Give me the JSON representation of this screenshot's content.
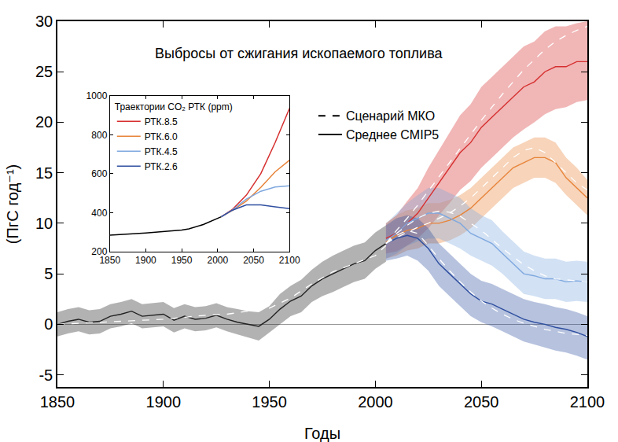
{
  "chart_data": [
    {
      "type": "line",
      "title": "Выбросы от сжигания ископаемого топлива",
      "x_label": "Годы",
      "y_label": "(ПгС год⁻¹)",
      "xlim": [
        1850,
        2100
      ],
      "xticks": [
        1850,
        1900,
        1950,
        2000,
        2050,
        2100
      ],
      "ylim": [
        -6.2,
        30
      ],
      "yticks": [
        -5,
        0,
        5,
        10,
        15,
        20,
        25,
        30
      ],
      "legend_items": [
        {
          "name": "Среднее CMIP5",
          "color": "#000000",
          "line_style": "solid"
        },
        {
          "name": "Сценарий МКО",
          "color": "#000000",
          "line_style": "dashed"
        }
      ],
      "series": [
        {
          "color": "#222222",
          "x": [
            1850,
            1855,
            1860,
            1865,
            1870,
            1875,
            1880,
            1885,
            1890,
            1895,
            1900,
            1905,
            1910,
            1915,
            1920,
            1925,
            1930,
            1935,
            1940,
            1945,
            1950,
            1955,
            1960,
            1965,
            1970,
            1975,
            1980,
            1985,
            1990,
            1995,
            2000,
            2005
          ],
          "values": [
            0,
            0.3,
            0.5,
            0.2,
            0.3,
            0.8,
            1.0,
            1.3,
            0.8,
            0.9,
            1.0,
            0.4,
            0.8,
            0.5,
            0.6,
            0.9,
            0.5,
            0.2,
            0.0,
            -0.2,
            0.5,
            1.5,
            2.3,
            2.8,
            3.8,
            4.5,
            5.0,
            5.5,
            6.0,
            6.3,
            7.3,
            8.0
          ],
          "lower": [
            -1.2,
            -0.9,
            -0.7,
            -1.0,
            -0.9,
            -0.4,
            -0.2,
            0.1,
            -0.4,
            -0.3,
            -0.2,
            -0.8,
            -0.4,
            -0.7,
            -0.6,
            -0.3,
            -0.7,
            -1.0,
            -1.3,
            -1.6,
            -0.8,
            0.0,
            0.8,
            1.2,
            2.2,
            2.8,
            3.2,
            3.7,
            4.2,
            4.5,
            5.5,
            6.2
          ],
          "upper": [
            1.2,
            1.5,
            1.7,
            1.4,
            1.5,
            2.0,
            2.2,
            2.5,
            2.0,
            2.1,
            2.2,
            1.6,
            2.0,
            1.7,
            1.8,
            2.1,
            1.7,
            1.5,
            1.3,
            1.2,
            1.8,
            3.0,
            3.8,
            4.4,
            5.4,
            6.2,
            6.8,
            7.3,
            7.8,
            8.1,
            9.1,
            9.8
          ],
          "iam": {
            "color": "#ffffff",
            "line_style": "dashed",
            "x": [
              1850,
              1860,
              1870,
              1880,
              1890,
              1900,
              1910,
              1920,
              1930,
              1940,
              1950,
              1960,
              1970,
              1980,
              1990,
              2000,
              2005
            ],
            "values": [
              0,
              0.1,
              0.2,
              0.3,
              0.4,
              0.5,
              0.7,
              0.9,
              1.0,
              1.3,
              1.6,
              2.6,
              4.0,
              5.2,
              6.0,
              6.8,
              7.8
            ]
          }
        },
        {
          "name": "РТК.8.5",
          "color": "#d62f2f",
          "x": [
            2005,
            2010,
            2015,
            2020,
            2025,
            2030,
            2035,
            2040,
            2045,
            2050,
            2055,
            2060,
            2065,
            2070,
            2075,
            2080,
            2085,
            2090,
            2095,
            2100
          ],
          "values": [
            8.5,
            9,
            10,
            11,
            12.5,
            14,
            15.5,
            17,
            18,
            19.5,
            20.5,
            21.5,
            22.5,
            23.5,
            24,
            25,
            25.5,
            25.5,
            26,
            26
          ],
          "lower": [
            7,
            7.2,
            7.8,
            8.5,
            9.5,
            10.8,
            12,
            13.3,
            14.2,
            15.5,
            16.5,
            17.5,
            18.5,
            19.3,
            20,
            20.8,
            21.3,
            21.5,
            22,
            22.2
          ],
          "upper": [
            10,
            10.8,
            12.2,
            13.5,
            15.5,
            17.2,
            19,
            20.7,
            21.8,
            23.5,
            24.5,
            25.5,
            26.5,
            27.5,
            28,
            29,
            29.5,
            29.5,
            29.8,
            30
          ],
          "iam": {
            "color": "#ffffff",
            "line_style": "dashed",
            "x": [
              2005,
              2010,
              2015,
              2020,
              2025,
              2030,
              2035,
              2040,
              2045,
              2050,
              2055,
              2060,
              2065,
              2070,
              2075,
              2080,
              2085,
              2090,
              2095,
              2100
            ],
            "values": [
              8,
              9.3,
              10.5,
              11.8,
              13.2,
              14.6,
              16,
              17.4,
              18.8,
              20.2,
              21.5,
              22.8,
              24,
              25.2,
              26.2,
              27.2,
              28,
              28.6,
              29.1,
              29.5
            ]
          }
        },
        {
          "name": "РТК.6.0",
          "color": "#e8843a",
          "x": [
            2005,
            2010,
            2015,
            2020,
            2025,
            2030,
            2035,
            2040,
            2045,
            2050,
            2055,
            2060,
            2065,
            2070,
            2075,
            2080,
            2085,
            2090,
            2095,
            2100
          ],
          "values": [
            8.2,
            8.8,
            9.3,
            9.5,
            10,
            10,
            10.3,
            10.8,
            11.5,
            12.5,
            13.5,
            14.5,
            15.5,
            16,
            16.5,
            16.5,
            16,
            14.5,
            13.5,
            12.5
          ],
          "lower": [
            6.5,
            6.8,
            7.3,
            7.5,
            8,
            8,
            8.3,
            8.8,
            9.5,
            10.5,
            11.5,
            12.5,
            13.5,
            14,
            14.5,
            14.5,
            14,
            12.8,
            11.8,
            10.8
          ],
          "upper": [
            10,
            10.8,
            11.3,
            11.5,
            12,
            12,
            12.3,
            12.8,
            13.5,
            14.5,
            15.5,
            16.5,
            17.5,
            18,
            18.5,
            18.5,
            18,
            16.5,
            15.5,
            14.3
          ],
          "iam": {
            "color": "#ffffff",
            "line_style": "dashed",
            "x": [
              2005,
              2010,
              2015,
              2020,
              2025,
              2030,
              2035,
              2040,
              2045,
              2050,
              2055,
              2060,
              2065,
              2070,
              2075,
              2080,
              2085,
              2090,
              2095,
              2100
            ],
            "values": [
              8,
              8.6,
              9.1,
              9.6,
              10,
              10.5,
              11,
              11.7,
              12.5,
              13.5,
              14.5,
              15.5,
              16.5,
              17.2,
              17.5,
              17,
              16,
              15,
              14,
              13.3
            ]
          }
        },
        {
          "name": "РТК.4.5",
          "color": "#7fa8df",
          "x": [
            2005,
            2010,
            2015,
            2020,
            2025,
            2030,
            2035,
            2040,
            2045,
            2050,
            2055,
            2060,
            2065,
            2070,
            2075,
            2080,
            2085,
            2090,
            2095,
            2100
          ],
          "values": [
            8.3,
            9,
            10,
            10.5,
            11,
            11,
            10.5,
            10,
            9,
            8.5,
            8,
            7,
            6,
            5,
            4.8,
            4.5,
            4.5,
            4.2,
            4.3,
            4.2
          ],
          "lower": [
            6.5,
            7,
            7.8,
            8.2,
            8.5,
            8.5,
            8,
            7.5,
            6.8,
            6.3,
            5.8,
            5,
            4,
            3,
            2.8,
            2.5,
            2.5,
            2.2,
            2.3,
            2.2
          ],
          "upper": [
            10,
            11,
            12,
            12.8,
            13.5,
            13.5,
            13,
            12.5,
            11.5,
            10.8,
            10.3,
            9.2,
            8.2,
            7.2,
            6.8,
            6.5,
            6.5,
            6.2,
            6.3,
            6.2
          ],
          "iam": {
            "color": "#ffffff",
            "line_style": "dashed",
            "x": [
              2005,
              2010,
              2015,
              2020,
              2025,
              2030,
              2035,
              2040,
              2045,
              2050,
              2055,
              2060,
              2065,
              2070,
              2075,
              2080,
              2085,
              2090,
              2095,
              2100
            ],
            "values": [
              8,
              9,
              9.8,
              10.5,
              11,
              11.2,
              11.1,
              10.7,
              10,
              9.3,
              8.4,
              7.5,
              6.7,
              5.9,
              5.3,
              4.8,
              4.5,
              4.4,
              4.3,
              4.2
            ]
          }
        },
        {
          "name": "РТК.2.6",
          "color": "#2f4fa0",
          "x": [
            2005,
            2010,
            2015,
            2020,
            2025,
            2030,
            2035,
            2040,
            2045,
            2050,
            2055,
            2060,
            2065,
            2070,
            2075,
            2080,
            2085,
            2090,
            2095,
            2100
          ],
          "values": [
            8,
            8.5,
            8.8,
            8.5,
            7.5,
            6,
            5,
            4,
            3,
            2.3,
            2,
            1.5,
            1,
            0.5,
            0.2,
            0,
            -0.3,
            -0.5,
            -0.8,
            -1.2
          ],
          "lower": [
            6.3,
            6.5,
            6.8,
            6.3,
            5.3,
            3.8,
            2.8,
            1.8,
            0.8,
            0.2,
            -0.2,
            -0.7,
            -1.2,
            -1.7,
            -2,
            -2.3,
            -2.6,
            -2.8,
            -3.1,
            -3.5
          ],
          "upper": [
            9.8,
            10.5,
            10.8,
            10.5,
            9.5,
            8,
            7,
            6,
            5,
            4.3,
            4,
            3.5,
            3,
            2.5,
            2.2,
            2,
            1.7,
            1.5,
            1.2,
            0.8
          ],
          "iam": {
            "color": "#ffffff",
            "line_style": "dashed",
            "x": [
              2005,
              2010,
              2015,
              2020,
              2025,
              2030,
              2035,
              2040,
              2045,
              2050,
              2055,
              2060,
              2065,
              2070,
              2075,
              2080,
              2085,
              2090,
              2095,
              2100
            ],
            "values": [
              8,
              8.8,
              9.3,
              9,
              7.8,
              6.5,
              5.3,
              4.2,
              3.2,
              2.3,
              1.6,
              1,
              0.5,
              0.1,
              -0.2,
              -0.5,
              -0.7,
              -0.9,
              -1,
              -1.1
            ]
          }
        }
      ]
    },
    {
      "type": "line",
      "legend_title": "Траектории CO₂ РТК (ppm)",
      "xlim": [
        1850,
        2100
      ],
      "xticks": [
        1850,
        1900,
        1950,
        2000,
        2050,
        2100
      ],
      "ylim": [
        200,
        1000
      ],
      "yticks": [
        200,
        400,
        600,
        800,
        1000
      ],
      "series": [
        {
          "color": "#000000",
          "x": [
            1850,
            1900,
            1950,
            1960,
            1980,
            2000,
            2005
          ],
          "values": [
            285,
            296,
            311,
            317,
            339,
            369,
            379
          ]
        },
        {
          "name": "РТК.8.5",
          "color": "#d62f2f",
          "x": [
            2005,
            2020,
            2040,
            2060,
            2080,
            2100
          ],
          "values": [
            379,
            415,
            490,
            600,
            760,
            936
          ]
        },
        {
          "name": "РТК.6.0",
          "color": "#e8843a",
          "x": [
            2005,
            2020,
            2040,
            2060,
            2080,
            2100
          ],
          "values": [
            379,
            410,
            460,
            530,
            610,
            670
          ]
        },
        {
          "name": "РТК.4.5",
          "color": "#7fa8df",
          "x": [
            2005,
            2020,
            2040,
            2060,
            2080,
            2100
          ],
          "values": [
            379,
            412,
            470,
            510,
            532,
            538
          ]
        },
        {
          "name": "РТК.2.6",
          "color": "#2f4fa0",
          "x": [
            2005,
            2020,
            2040,
            2060,
            2080,
            2100
          ],
          "values": [
            379,
            412,
            440,
            440,
            430,
            421
          ]
        }
      ]
    }
  ]
}
